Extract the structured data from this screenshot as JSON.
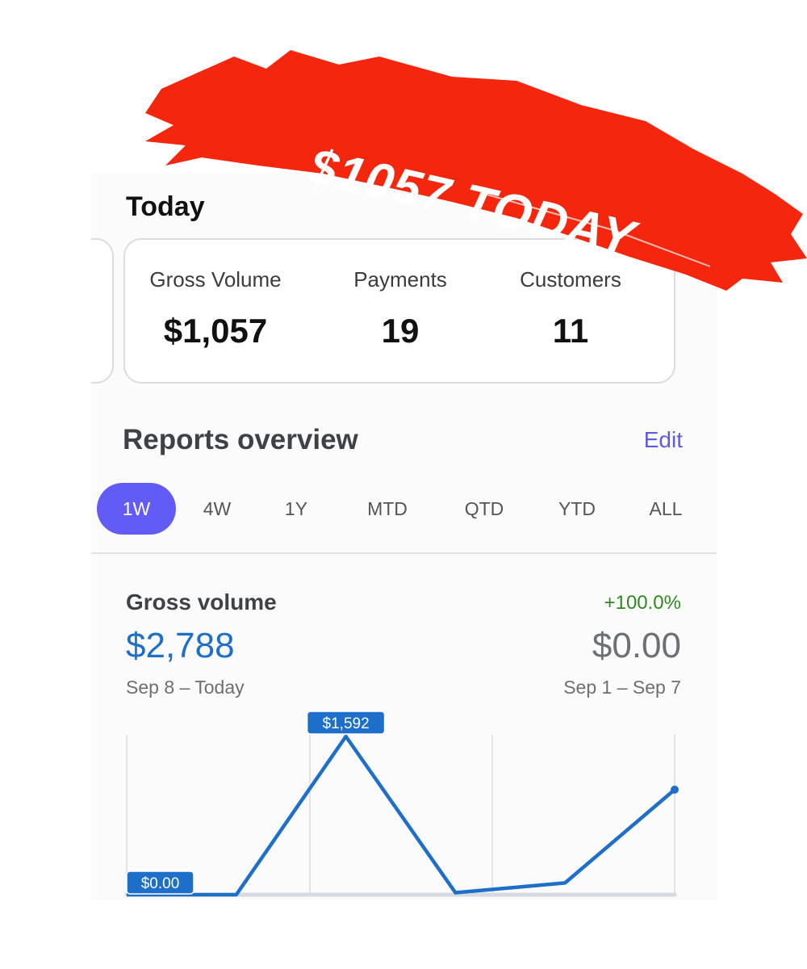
{
  "banner": {
    "text": "$1057 TODAY",
    "color": "#f5260e"
  },
  "today": {
    "title": "Today",
    "stats": [
      {
        "label": "Gross Volume",
        "value": "$1,057"
      },
      {
        "label": "Payments",
        "value": "19"
      },
      {
        "label": "Customers",
        "value": "11"
      }
    ]
  },
  "reports": {
    "title": "Reports overview",
    "edit_label": "Edit",
    "tabs": [
      "1W",
      "4W",
      "1Y",
      "MTD",
      "QTD",
      "YTD",
      "ALL"
    ],
    "active_tab": "1W",
    "accent": "#635bf5"
  },
  "gross_volume": {
    "title": "Gross volume",
    "change": "+100.0%",
    "value": "$2,788",
    "range": "Sep 8 – Today",
    "previous_value": "$0.00",
    "previous_range": "Sep 1 – Sep 7"
  },
  "chart_data": {
    "type": "line",
    "x": [
      1,
      2,
      3,
      4,
      5,
      6
    ],
    "values": [
      0,
      0,
      1592,
      20,
      119,
      1057
    ],
    "ylim": [
      0,
      1592
    ],
    "data_labels": [
      {
        "index": 0,
        "text": "$0.00"
      },
      {
        "index": 2,
        "text": "$1,592"
      }
    ],
    "color": "#1e6fc9",
    "grid": "vertical"
  }
}
